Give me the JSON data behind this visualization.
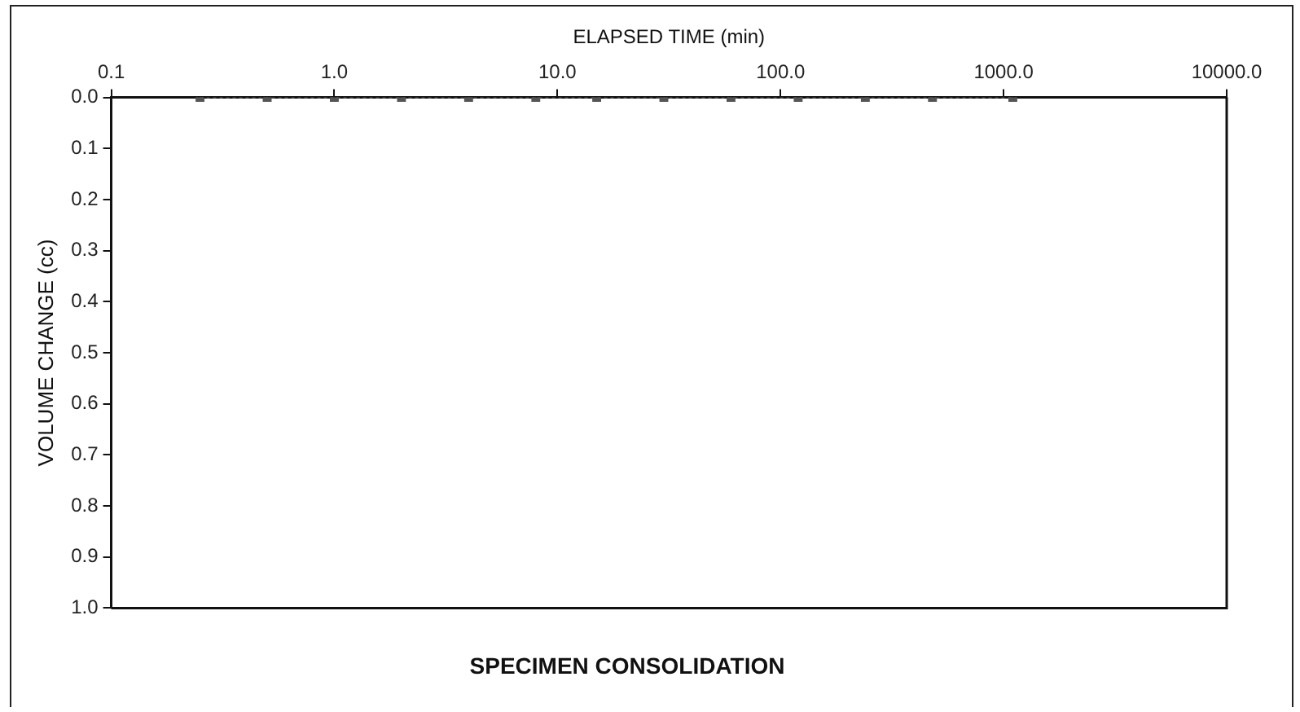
{
  "chart_data": {
    "type": "line",
    "title": "SPECIMEN CONSOLIDATION",
    "xlabel": "ELAPSED TIME (min)",
    "ylabel": "VOLUME CHANGE (cc)",
    "log": "x",
    "xlim": [
      0.1,
      10000
    ],
    "xticks": [
      {
        "value": 0.1,
        "label": "0.1"
      },
      {
        "value": 1,
        "label": "1.0"
      },
      {
        "value": 10,
        "label": "10.0"
      },
      {
        "value": 100,
        "label": "100.0"
      },
      {
        "value": 1000,
        "label": "1000.0"
      },
      {
        "value": 10000,
        "label": "10000.0"
      }
    ],
    "ylim": [
      1,
      0
    ],
    "yticks": [
      {
        "value": 0,
        "label": "0.0"
      },
      {
        "value": 0.1,
        "label": "0.1"
      },
      {
        "value": 0.2,
        "label": "0.2"
      },
      {
        "value": 0.3,
        "label": "0.3"
      },
      {
        "value": 0.4,
        "label": "0.4"
      },
      {
        "value": 0.5,
        "label": "0.5"
      },
      {
        "value": 0.6,
        "label": "0.6"
      },
      {
        "value": 0.7,
        "label": "0.7"
      },
      {
        "value": 0.8,
        "label": "0.8"
      },
      {
        "value": 0.9,
        "label": "0.9"
      },
      {
        "value": 1,
        "label": "1.0"
      }
    ],
    "grid": false,
    "marker": "square",
    "line_style": "dotted",
    "series": [
      {
        "color": "#555555",
        "x": [
          0.25,
          0.5,
          1,
          2,
          4,
          8,
          15,
          30,
          60,
          120,
          240,
          480,
          1100
        ],
        "values": [
          0,
          0,
          0,
          0,
          0,
          0,
          0,
          0,
          0,
          0,
          0,
          0,
          0
        ]
      }
    ]
  }
}
